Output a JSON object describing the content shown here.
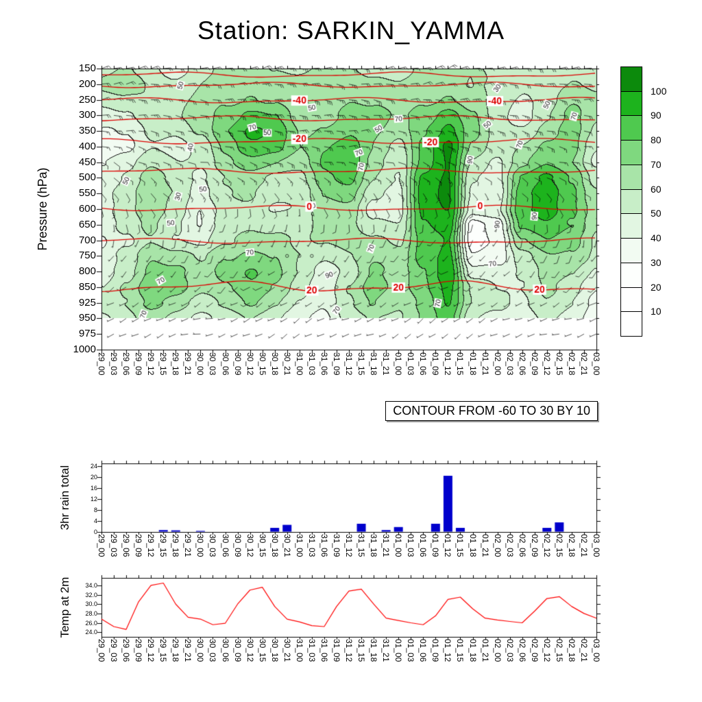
{
  "title": "Station: SARKIN_YAMMA",
  "chart_data": [
    {
      "type": "heatmap",
      "name": "pressure-time cross section, shaded humidity with wind barbs and red temperature contours",
      "ylabel": "Pressure (hPa)",
      "contour_note": "CONTOUR FROM -60 TO 30 BY 10",
      "pressure_ticks": [
        150,
        200,
        250,
        300,
        350,
        400,
        450,
        500,
        550,
        600,
        650,
        700,
        750,
        800,
        850,
        925,
        950,
        975,
        1000
      ],
      "x_ticks": [
        "29_00",
        "29_03",
        "29_06",
        "29_09",
        "29_12",
        "29_15",
        "29_18",
        "29_21",
        "30_00",
        "30_03",
        "30_06",
        "30_09",
        "30_12",
        "30_15",
        "30_18",
        "30_21",
        "31_00",
        "31_03",
        "31_06",
        "31_09",
        "31_12",
        "31_15",
        "31_18",
        "31_21",
        "01_00",
        "01_03",
        "01_06",
        "01_09",
        "01_12",
        "01_15",
        "01_18",
        "01_21",
        "02_00",
        "02_03",
        "02_06",
        "02_09",
        "02_12",
        "02_15",
        "02_18",
        "02_21",
        "03_00"
      ],
      "shading": {
        "levels": [
          150,
          200,
          250,
          300,
          350,
          400,
          450,
          500,
          550,
          600,
          650,
          700,
          750,
          800,
          850,
          925,
          950
        ],
        "times_6h": [
          "29_00",
          "29_06",
          "29_12",
          "29_18",
          "30_00",
          "30_06",
          "30_12",
          "30_18",
          "31_00",
          "31_06",
          "31_12",
          "31_18",
          "01_00",
          "01_06",
          "01_12",
          "01_18",
          "02_00",
          "02_06",
          "02_12",
          "02_18",
          "03_00"
        ],
        "values": [
          [
            55,
            60,
            55,
            50,
            55,
            60,
            65,
            60,
            55,
            60,
            65,
            60,
            55,
            60,
            65,
            60,
            55,
            50,
            55,
            60,
            55
          ],
          [
            60,
            65,
            60,
            55,
            60,
            65,
            70,
            65,
            60,
            65,
            70,
            65,
            60,
            65,
            70,
            60,
            55,
            50,
            55,
            60,
            55
          ],
          [
            50,
            55,
            60,
            55,
            60,
            70,
            75,
            70,
            60,
            65,
            70,
            65,
            60,
            70,
            75,
            65,
            55,
            50,
            55,
            65,
            60
          ],
          [
            45,
            50,
            60,
            55,
            60,
            75,
            85,
            80,
            65,
            70,
            75,
            70,
            65,
            75,
            85,
            70,
            55,
            50,
            60,
            70,
            60
          ],
          [
            40,
            45,
            55,
            50,
            60,
            80,
            90,
            85,
            70,
            75,
            80,
            70,
            65,
            80,
            90,
            70,
            55,
            55,
            65,
            75,
            60
          ],
          [
            35,
            40,
            50,
            45,
            55,
            75,
            85,
            80,
            70,
            80,
            85,
            70,
            60,
            85,
            100,
            65,
            55,
            60,
            70,
            75,
            55
          ],
          [
            40,
            45,
            55,
            50,
            55,
            70,
            75,
            70,
            65,
            80,
            85,
            65,
            55,
            85,
            100,
            60,
            50,
            65,
            75,
            70,
            50
          ],
          [
            45,
            50,
            60,
            55,
            50,
            60,
            65,
            60,
            60,
            75,
            80,
            60,
            50,
            90,
            100,
            55,
            50,
            80,
            90,
            80,
            55
          ],
          [
            50,
            55,
            65,
            60,
            45,
            55,
            60,
            55,
            55,
            70,
            75,
            55,
            45,
            90,
            100,
            50,
            45,
            85,
            100,
            85,
            60
          ],
          [
            45,
            55,
            70,
            60,
            40,
            50,
            55,
            50,
            50,
            65,
            70,
            50,
            45,
            90,
            100,
            45,
            45,
            85,
            100,
            85,
            65
          ],
          [
            40,
            50,
            65,
            55,
            40,
            55,
            60,
            55,
            50,
            60,
            65,
            55,
            50,
            90,
            100,
            25,
            30,
            80,
            90,
            80,
            60
          ],
          [
            35,
            45,
            60,
            50,
            45,
            60,
            70,
            65,
            55,
            60,
            65,
            60,
            55,
            85,
            95,
            25,
            30,
            70,
            80,
            70,
            55
          ],
          [
            40,
            55,
            70,
            60,
            55,
            70,
            75,
            70,
            60,
            55,
            60,
            65,
            60,
            85,
            95,
            30,
            35,
            60,
            70,
            65,
            55
          ],
          [
            45,
            60,
            75,
            70,
            60,
            75,
            80,
            70,
            60,
            50,
            55,
            70,
            65,
            80,
            95,
            40,
            45,
            55,
            65,
            60,
            50
          ],
          [
            50,
            65,
            80,
            75,
            65,
            70,
            75,
            65,
            55,
            45,
            60,
            75,
            70,
            80,
            90,
            55,
            50,
            50,
            60,
            55,
            45
          ],
          [
            55,
            60,
            70,
            65,
            60,
            65,
            70,
            60,
            50,
            40,
            55,
            70,
            65,
            75,
            90,
            60,
            55,
            45,
            55,
            50,
            40
          ],
          [
            50,
            55,
            60,
            55,
            50,
            55,
            60,
            55,
            45,
            35,
            50,
            60,
            60,
            70,
            85,
            55,
            50,
            40,
            50,
            45,
            35
          ]
        ]
      },
      "colorbar": {
        "tick_labels": [
          10,
          20,
          30,
          40,
          50,
          60,
          70,
          80,
          90,
          100
        ],
        "colors": [
          "#ffffff",
          "#ffffff",
          "#fdfffd",
          "#f2fbf2",
          "#e2f6e2",
          "#c8eec8",
          "#a8e4a8",
          "#7fd87f",
          "#4fc94f",
          "#1db31d",
          "#0c8a0c"
        ]
      },
      "temp_contours": {
        "color": "#dd0000",
        "lines": [
          {
            "value": -60,
            "pressure": 170
          },
          {
            "value": -50,
            "pressure": 203
          },
          {
            "value": -40,
            "pressure": 252
          },
          {
            "value": -30,
            "pressure": 310
          },
          {
            "value": -20,
            "pressure": 383
          },
          {
            "value": -10,
            "pressure": 478
          },
          {
            "value": 0,
            "pressure": 597
          },
          {
            "value": 10,
            "pressure": 702
          },
          {
            "value": 20,
            "pressure": 848
          }
        ],
        "labels": [
          {
            "text": "-40",
            "value": -40,
            "x": 0.4
          },
          {
            "text": "-40",
            "value": -40,
            "x": 0.795
          },
          {
            "text": "-20",
            "value": -20,
            "x": 0.4
          },
          {
            "text": "-20",
            "value": -20,
            "x": 0.665
          },
          {
            "text": "0",
            "value": 0,
            "x": 0.42
          },
          {
            "text": "0",
            "value": 0,
            "x": 0.765
          },
          {
            "text": "20",
            "value": 20,
            "x": 0.425
          },
          {
            "text": "20",
            "value": 20,
            "x": 0.6
          },
          {
            "text": "20",
            "value": 20,
            "x": 0.885
          }
        ]
      },
      "shading_contour_labels": [
        {
          "t": "50",
          "x": 0.16,
          "y": 0.06,
          "r": -75
        },
        {
          "t": "30",
          "x": 0.8,
          "y": 0.07,
          "r": -55
        },
        {
          "t": "50",
          "x": 0.9,
          "y": 0.13,
          "r": -65
        },
        {
          "t": "70",
          "x": 0.955,
          "y": 0.17,
          "r": -75
        },
        {
          "t": "50",
          "x": 0.425,
          "y": 0.14,
          "r": -10
        },
        {
          "t": "70",
          "x": 0.6,
          "y": 0.18,
          "r": -5
        },
        {
          "t": "50",
          "x": 0.56,
          "y": 0.215,
          "r": -30
        },
        {
          "t": "70",
          "x": 0.305,
          "y": 0.21,
          "r": -15
        },
        {
          "t": "50",
          "x": 0.335,
          "y": 0.23,
          "r": 0
        },
        {
          "t": "50",
          "x": 0.78,
          "y": 0.2,
          "r": -40
        },
        {
          "t": "90",
          "x": 0.745,
          "y": 0.325,
          "r": -80
        },
        {
          "t": "70",
          "x": 0.845,
          "y": 0.27,
          "r": -70
        },
        {
          "t": "40",
          "x": 0.18,
          "y": 0.28,
          "r": -80
        },
        {
          "t": "70",
          "x": 0.52,
          "y": 0.3,
          "r": -20
        },
        {
          "t": "50",
          "x": 0.05,
          "y": 0.4,
          "r": -65
        },
        {
          "t": "50",
          "x": 0.205,
          "y": 0.43,
          "r": -5
        },
        {
          "t": "30",
          "x": 0.155,
          "y": 0.455,
          "r": -75
        },
        {
          "t": "70",
          "x": 0.525,
          "y": 0.35,
          "r": -80
        },
        {
          "t": "70",
          "x": 0.425,
          "y": 0.49,
          "r": -10
        },
        {
          "t": "50",
          "x": 0.14,
          "y": 0.55,
          "r": -5
        },
        {
          "t": "90",
          "x": 0.8,
          "y": 0.555,
          "r": -85
        },
        {
          "t": "90",
          "x": 0.875,
          "y": 0.525,
          "r": -85
        },
        {
          "t": "70",
          "x": 0.3,
          "y": 0.655,
          "r": -5
        },
        {
          "t": "70",
          "x": 0.545,
          "y": 0.64,
          "r": -70
        },
        {
          "t": "90",
          "x": 0.46,
          "y": 0.735,
          "r": -20
        },
        {
          "t": "70",
          "x": 0.79,
          "y": 0.695,
          "r": -10
        },
        {
          "t": "70",
          "x": 0.12,
          "y": 0.755,
          "r": -30
        },
        {
          "t": "70",
          "x": 0.68,
          "y": 0.835,
          "r": -80
        },
        {
          "t": "70",
          "x": 0.475,
          "y": 0.86,
          "r": -55
        },
        {
          "t": "70",
          "x": 0.085,
          "y": 0.875,
          "r": -70
        }
      ],
      "wind_barbs": {
        "levels": [
          150,
          250,
          350,
          450,
          550,
          650,
          750,
          850,
          950
        ],
        "times_12h": [
          "29_00",
          "29_12",
          "30_00",
          "30_12",
          "31_00",
          "31_12",
          "01_00",
          "01_12",
          "02_00",
          "02_12",
          "03_00"
        ],
        "dir_deg": [
          [
            70,
            80,
            90,
            75,
            85,
            95,
            80,
            70,
            85,
            90,
            80
          ],
          [
            80,
            90,
            100,
            85,
            95,
            105,
            90,
            85,
            95,
            100,
            90
          ],
          [
            90,
            100,
            110,
            95,
            90,
            85,
            95,
            100,
            110,
            105,
            95
          ],
          [
            120,
            110,
            100,
            115,
            105,
            95,
            110,
            120,
            115,
            105,
            100
          ],
          [
            150,
            140,
            130,
            145,
            150,
            135,
            140,
            150,
            145,
            135,
            130
          ],
          [
            180,
            170,
            190,
            200,
            185,
            175,
            190,
            200,
            195,
            185,
            180
          ],
          [
            210,
            220,
            200,
            215,
            225,
            205,
            220,
            230,
            215,
            205,
            210
          ],
          [
            230,
            240,
            220,
            235,
            245,
            225,
            240,
            250,
            235,
            225,
            230
          ],
          [
            250,
            240,
            260,
            245,
            235,
            255,
            240,
            230,
            245,
            255,
            250
          ]
        ],
        "speed_kt": [
          [
            15,
            20,
            15,
            20,
            25,
            20,
            15,
            20,
            15,
            20,
            15
          ],
          [
            20,
            25,
            20,
            25,
            30,
            25,
            20,
            25,
            20,
            25,
            20
          ],
          [
            15,
            20,
            15,
            20,
            25,
            20,
            15,
            20,
            25,
            20,
            15
          ],
          [
            10,
            15,
            10,
            15,
            20,
            15,
            10,
            15,
            10,
            15,
            10
          ],
          [
            10,
            10,
            15,
            10,
            5,
            10,
            15,
            10,
            5,
            10,
            10
          ],
          [
            5,
            10,
            5,
            10,
            5,
            10,
            5,
            10,
            5,
            10,
            5
          ],
          [
            5,
            5,
            10,
            5,
            0,
            5,
            10,
            5,
            5,
            10,
            5
          ],
          [
            10,
            5,
            5,
            10,
            5,
            0,
            5,
            10,
            5,
            5,
            10
          ],
          [
            5,
            5,
            5,
            5,
            5,
            5,
            5,
            5,
            5,
            5,
            5
          ]
        ]
      }
    },
    {
      "type": "bar",
      "ylabel": "3hr rain total",
      "y_ticks": [
        0,
        4,
        8,
        12,
        16,
        20,
        24
      ],
      "ylim": [
        0,
        25
      ],
      "bar_color": "#0000cc",
      "values": [
        0,
        0,
        0,
        0,
        0,
        0.7,
        0.6,
        0,
        0.4,
        0,
        0,
        0,
        0,
        0,
        1.5,
        2.6,
        0,
        0,
        0,
        0,
        0,
        3.0,
        0,
        0.7,
        1.8,
        0,
        0,
        3.0,
        20.5,
        1.5,
        0,
        0,
        0,
        0,
        0,
        0,
        1.5,
        3.5,
        0,
        0,
        0
      ]
    },
    {
      "type": "line",
      "ylabel": "Temp at 2m",
      "y_ticks": [
        24,
        26,
        28,
        30,
        32,
        34
      ],
      "line_color": "#ff0000",
      "values": [
        26.8,
        25.2,
        24.6,
        30.5,
        34.0,
        34.5,
        30.0,
        27.2,
        26.8,
        25.6,
        25.9,
        30.0,
        33.0,
        33.6,
        29.5,
        26.8,
        26.2,
        25.4,
        25.2,
        29.5,
        32.8,
        33.2,
        30.0,
        27.0,
        26.5,
        26.0,
        25.6,
        27.5,
        31.0,
        31.5,
        29.0,
        27.0,
        26.6,
        26.3,
        26.0,
        28.5,
        31.2,
        31.6,
        29.5,
        28.0,
        27.0
      ]
    }
  ]
}
